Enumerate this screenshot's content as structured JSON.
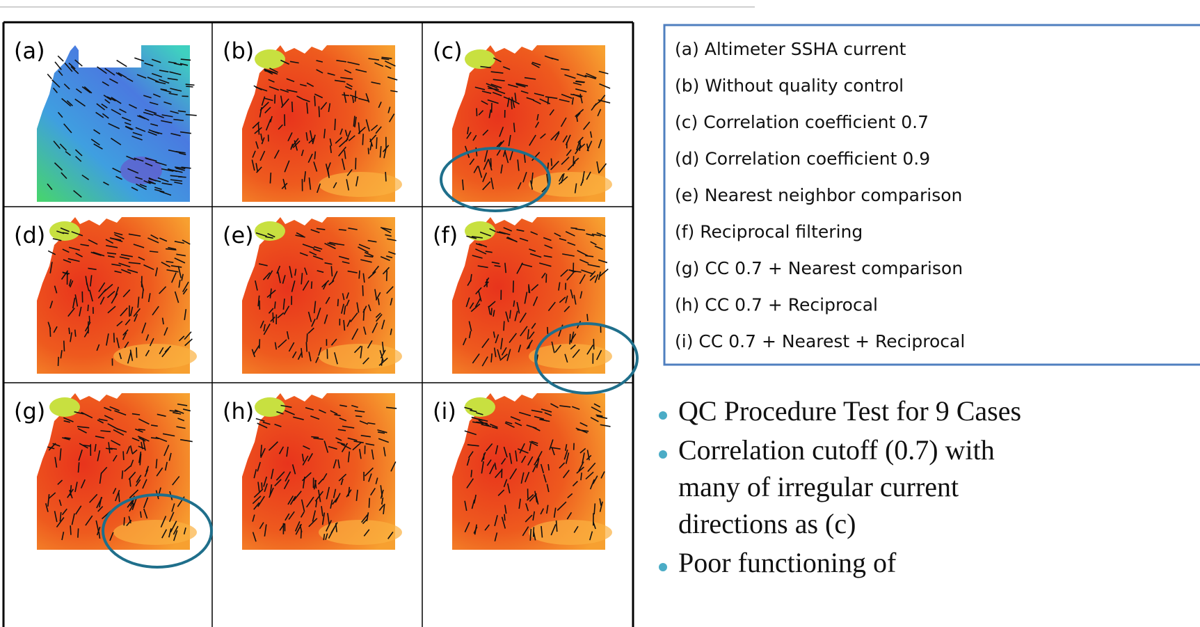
{
  "panels": [
    {
      "label": "(a)"
    },
    {
      "label": "(b)"
    },
    {
      "label": "(c)"
    },
    {
      "label": "(d)"
    },
    {
      "label": "(e)"
    },
    {
      "label": "(f)"
    },
    {
      "label": "(g)"
    },
    {
      "label": "(h)"
    },
    {
      "label": "(i)"
    }
  ],
  "legend": {
    "items": [
      "(a) Altimeter SSHA current",
      "(b) Without quality control",
      "(c) Correlation coefficient 0.7",
      "(d) Correlation coefficient 0.9",
      "(e) Nearest neighbor comparison",
      "(f)  Reciprocal filtering",
      "(g) CC 0.7 + Nearest comparison",
      "(h) CC 0.7 + Reciprocal",
      "(i)  CC 0.7 + Nearest + Reciprocal"
    ]
  },
  "bullets": [
    {
      "lines": [
        "QC Procedure Test for 9 Cases"
      ]
    },
    {
      "lines": [
        "Correlation cutoff (0.7) with",
        "many of irregular current",
        "directions as (c)"
      ]
    },
    {
      "lines": [
        "Poor functioning of"
      ]
    }
  ]
}
